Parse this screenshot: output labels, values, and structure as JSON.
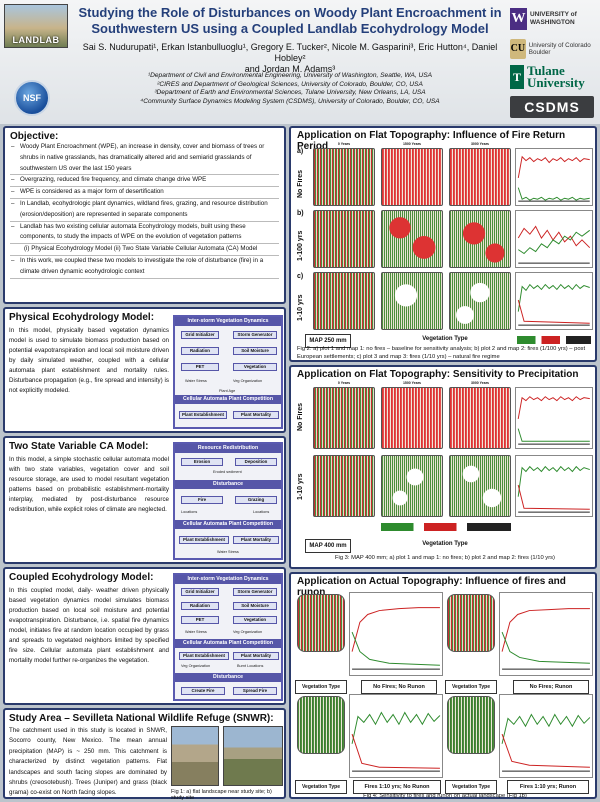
{
  "header": {
    "title": "Studying the Role of Disturbances on Woody Plant Encroachment in Southwestern US using a Coupled Landlab Ecohydrology Model",
    "authors_line1": "Sai S. Nudurupati¹, Erkan Istanbulluoglu¹, Gregory E. Tucker², Nicole M. Gasparini³, Eric Hutton⁴, Daniel Hobley²",
    "authors_line2": "and Jordan M. Adams³",
    "affiliations": [
      "¹Department of Civil and Environmental Engineering, University of Washington, Seattle, WA, USA",
      "²CIRES and Department of Geological Sciences, University of Colorado, Boulder, CO, USA",
      "³Department of Earth and Environmental Sciences, Tulane University, New Orleans, LA, USA",
      "⁴Community Surface Dynamics Modeling System (CSDMS), University of Colorado, Boulder, CO, USA"
    ],
    "landlab_logo": "LANDLAB",
    "nsf_logo": "NSF",
    "uw_mark": "W",
    "uw_text": "UNIVERSITY of WASHINGTON",
    "cu_mark": "CU",
    "cu_text": "University of Colorado Boulder",
    "tulane_mark": "T",
    "tulane_text": "Tulane University",
    "csdms": "CSDMS"
  },
  "objective": {
    "heading": "Objective:",
    "items": [
      "Woody Plant Encroachment (WPE), an increase in density, cover and biomass of trees or shrubs in native grasslands, has dramatically altered arid and semiarid grasslands of southwestern US over the last 150 years",
      "Overgrazing, reduced fire frequency, and climate change drive WPE",
      "WPE is considered as a major form of desertification",
      "In Landlab, ecohydrologic plant dynamics, wildland fires, grazing, and resource distribution (erosion/deposition) are represented in separate components",
      "Landlab has two existing cellular automata Ecohydrology models, built using these components, to study the impacts of WPE on the evolution of vegetation patterns"
    ],
    "sub_item": "(i) Physical Ecohydrology Model   (ii) Two State Variable Cellular Automata (CA) Model",
    "last_item": "In this work, we coupled these two models to investigate the role of disturbance (fire) in a climate driven dynamic ecohydrologic context"
  },
  "physical": {
    "heading": "Physical Ecohydrology Model:",
    "text": "In this model, physically based vegetation dynamics model is used to simulate biomass production based on potential evapotranspiration and local soil moisture driven by daily simulated weather, coupled with a cellular automata plant establishment and mortality rules. Disturbance propagation (e.g., fire spread and intensity) is not explicitly modeled.",
    "diagram": {
      "top": "Inter-storm Vegetation Dynamics",
      "boxes": [
        "Grid Initializer",
        "Storm Generator",
        "Radiation",
        "Soil Moisture",
        "PET",
        "Vegetation"
      ],
      "labels": [
        "Water Stress",
        "Veg Organization",
        "Plant Age"
      ],
      "bottom": "Cellular Automata Plant Competition",
      "bottom_boxes": [
        "Plant Establishment",
        "Plant Mortality"
      ]
    }
  },
  "twostate": {
    "heading": "Two State Variable CA Model:",
    "text": "In this model, a simple stochastic cellular automata model with two state variables, vegetation cover and soil resource storage, are used to model resultant vegetation patterns based on probabilistic establishment-mortality interplay, mediated by post-disturbance resource redistribution, while explicit roles of climate are neglected.",
    "diagram": {
      "top": "Resource Redistribution",
      "boxes": [
        "Erosion",
        "Deposition"
      ],
      "mid": "Disturbance",
      "mid_boxes": [
        "Fire",
        "Grazing"
      ],
      "bottom": "Cellular Automata Plant Competition",
      "bottom_boxes": [
        "Plant Establishment",
        "Plant Mortality"
      ],
      "labels": [
        "Eroded sediment",
        "Locations",
        "Locations",
        "Water Stress"
      ]
    }
  },
  "coupled": {
    "heading": "Coupled Ecohydrology Model:",
    "text": "In this coupled model, daily- weather driven physically based vegetation dynamics model simulates biomass production based on local soil moisture and potential evapotranspiration. Disturbance, i.e. spatial fire dynamics model, initiates fire at random location occupied by grass and spreads to vegetated neighbors limited by specified fire size. Cellular automata plant establishment and mortality model further re-organizes the vegetation.",
    "diagram": {
      "top": "Inter-storm Vegetation Dynamics",
      "boxes": [
        "Grid Initializer",
        "Storm Generator",
        "Radiation",
        "Soil Moisture",
        "PET",
        "Vegetation"
      ],
      "mid": "Cellular Automata Plant Competition",
      "mid_boxes": [
        "Plant Establishment",
        "Plant Mortality"
      ],
      "bottom": "Disturbance",
      "bottom_boxes": [
        "Create Fire",
        "Spread Fire"
      ],
      "labels": [
        "Water Stress",
        "Veg Organization",
        "Veg Organization",
        "Burnt Locations"
      ]
    }
  },
  "study": {
    "heading": "Study Area – Sevilleta National Wildlife Refuge (SNWR):",
    "text": "The catchment used in this study is located in SNWR, Socorro county, New Mexico. The mean annual precipitation (MAP) is ~ 250 mm. This catchment is characterized by distinct vegetation patterns. Flat landscapes and south facing slopes are dominated by shrubs (creosotebush). Trees (Juniper) and grass (black grama) co-exist on North facing slopes.",
    "caption": "Fig 1: a) flat landscape near study site; b) study site"
  },
  "fire": {
    "heading": "Application on Flat Topography: Influence of Fire Return Period",
    "cols": [
      "0 Years",
      "1500 Years",
      "3000 Years"
    ],
    "rows": [
      "a)",
      "b)",
      "c)"
    ],
    "row_labels": [
      "No Fires",
      "1-100 yrs",
      "1-10 yrs"
    ],
    "map": "MAP 250 mm",
    "vegtype": "Vegetation Type",
    "caption": "Fig 2:  a) plot 1 and map 1: no fires – baseline for sensitivity analysis; b) plot 2 and map 2: fires (1/100 yrs) – post European settlements; c) plot 3 and map 3: fires (1/10 yrs) – natural fire regime"
  },
  "precip": {
    "heading": "Application on Flat Topography: Sensitivity to Precipitation",
    "cols": [
      "0 Years",
      "1500 Years",
      "3000 Years"
    ],
    "row_labels": [
      "No Fires",
      "1-10 yrs"
    ],
    "map": "MAP 400 mm",
    "vegtype": "Vegetation Type",
    "caption": "Fig 3:  MAP 400 mm; a) plot 1 and map 1: no fires; b) plot 2 and map 2: fires (1/10 yrs)"
  },
  "actual": {
    "heading": "Application on Actual Topography: Influence of fires and runon",
    "vegtype": "Vegetation Type",
    "labels": [
      "No Fires; No Runon",
      "No Fires; Runon",
      "Fires 1:10 yrs; No Runon",
      "Fires 1:10 yrs; Runon"
    ],
    "xlabel": "Time in years",
    "caption": "Fig 4:  Sensitivity to fires and runon on actual landscape (Fig 1b)"
  },
  "legend": [
    "Grass",
    "Shrub",
    "Tree"
  ],
  "colors": {
    "border": "#2a3a6c",
    "title": "#243f7a",
    "grass": "#2e8b2e",
    "shrub": "#cc2222",
    "tree": "#222222"
  }
}
